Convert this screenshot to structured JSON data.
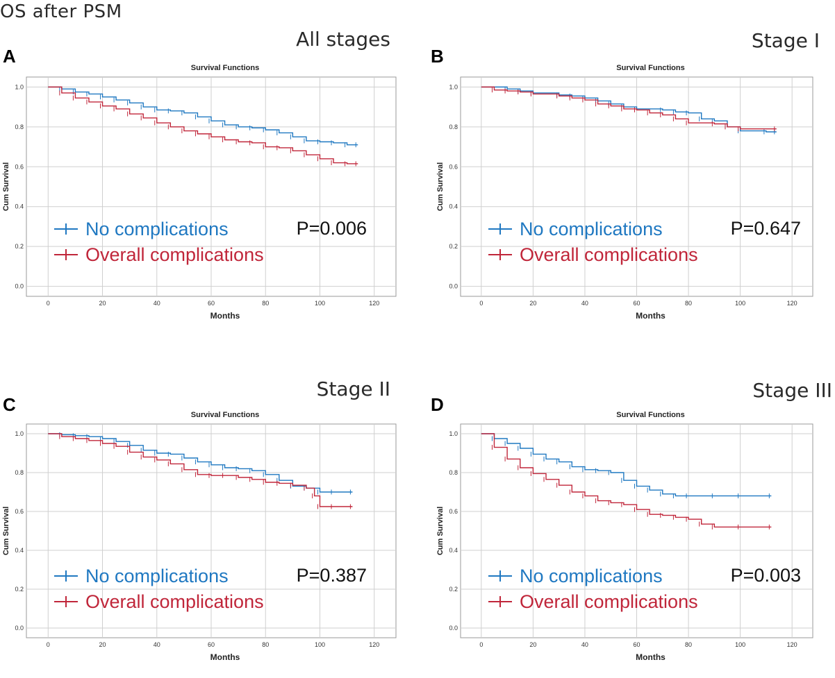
{
  "figure_title": "OS after PSM",
  "colors": {
    "no_complications": "#1f78c1",
    "overall_complications": "#c0263a",
    "grid": "#cfcfcf",
    "axis": "#999999"
  },
  "legend": {
    "no_complications": "No complications",
    "overall_complications": "Overall complications"
  },
  "chart_data": [
    {
      "type": "line",
      "panel": "A",
      "stage": "All stages",
      "title": "Survival Functions",
      "xlabel": "Months",
      "ylabel": "Cum Survival",
      "xlim": [
        -8,
        128
      ],
      "ylim": [
        -0.05,
        1.05
      ],
      "xticks": [
        0,
        20,
        40,
        60,
        80,
        100,
        120
      ],
      "yticks": [
        0.0,
        0.2,
        0.4,
        0.6,
        0.8,
        1.0
      ],
      "xtick_labels": [
        "0",
        "20",
        "40",
        "60",
        "80",
        "100",
        "120"
      ],
      "ytick_labels": [
        "0.0",
        "0.2",
        "0.4",
        "0.6",
        "0.8",
        "1.0"
      ],
      "p_value": "P=0.006",
      "series": [
        {
          "name": "No complications",
          "points": [
            [
              0,
              1.0
            ],
            [
              5,
              0.99
            ],
            [
              10,
              0.975
            ],
            [
              15,
              0.965
            ],
            [
              20,
              0.95
            ],
            [
              25,
              0.935
            ],
            [
              30,
              0.92
            ],
            [
              35,
              0.9
            ],
            [
              40,
              0.885
            ],
            [
              45,
              0.88
            ],
            [
              50,
              0.87
            ],
            [
              55,
              0.85
            ],
            [
              60,
              0.83
            ],
            [
              65,
              0.81
            ],
            [
              70,
              0.8
            ],
            [
              75,
              0.795
            ],
            [
              80,
              0.785
            ],
            [
              85,
              0.77
            ],
            [
              90,
              0.75
            ],
            [
              95,
              0.73
            ],
            [
              100,
              0.725
            ],
            [
              105,
              0.72
            ],
            [
              110,
              0.71
            ],
            [
              114,
              0.71
            ]
          ]
        },
        {
          "name": "Overall complications",
          "points": [
            [
              0,
              1.0
            ],
            [
              5,
              0.97
            ],
            [
              10,
              0.945
            ],
            [
              15,
              0.925
            ],
            [
              20,
              0.905
            ],
            [
              25,
              0.89
            ],
            [
              30,
              0.865
            ],
            [
              35,
              0.845
            ],
            [
              40,
              0.82
            ],
            [
              45,
              0.8
            ],
            [
              50,
              0.78
            ],
            [
              55,
              0.765
            ],
            [
              60,
              0.75
            ],
            [
              65,
              0.735
            ],
            [
              70,
              0.725
            ],
            [
              75,
              0.72
            ],
            [
              80,
              0.7
            ],
            [
              85,
              0.695
            ],
            [
              90,
              0.68
            ],
            [
              95,
              0.66
            ],
            [
              100,
              0.64
            ],
            [
              105,
              0.62
            ],
            [
              110,
              0.615
            ],
            [
              114,
              0.615
            ]
          ]
        }
      ]
    },
    {
      "type": "line",
      "panel": "B",
      "stage": "Stage I",
      "title": "Survival Functions",
      "xlabel": "Months",
      "ylabel": "Cum Survival",
      "xlim": [
        -8,
        128
      ],
      "ylim": [
        -0.05,
        1.05
      ],
      "xticks": [
        0,
        20,
        40,
        60,
        80,
        100,
        120
      ],
      "yticks": [
        0.0,
        0.2,
        0.4,
        0.6,
        0.8,
        1.0
      ],
      "xtick_labels": [
        "0",
        "20",
        "40",
        "60",
        "80",
        "100",
        "120"
      ],
      "ytick_labels": [
        "0.0",
        "0.2",
        "0.4",
        "0.6",
        "0.8",
        "1.0"
      ],
      "p_value": "P=0.647",
      "series": [
        {
          "name": "No complications",
          "points": [
            [
              0,
              1.0
            ],
            [
              10,
              0.99
            ],
            [
              15,
              0.98
            ],
            [
              20,
              0.97
            ],
            [
              30,
              0.96
            ],
            [
              35,
              0.955
            ],
            [
              40,
              0.945
            ],
            [
              45,
              0.93
            ],
            [
              50,
              0.915
            ],
            [
              55,
              0.9
            ],
            [
              60,
              0.89
            ],
            [
              70,
              0.885
            ],
            [
              75,
              0.875
            ],
            [
              80,
              0.87
            ],
            [
              85,
              0.84
            ],
            [
              90,
              0.83
            ],
            [
              95,
              0.8
            ],
            [
              100,
              0.78
            ],
            [
              110,
              0.775
            ],
            [
              114,
              0.775
            ]
          ]
        },
        {
          "name": "Overall complications",
          "points": [
            [
              0,
              1.0
            ],
            [
              5,
              0.985
            ],
            [
              10,
              0.98
            ],
            [
              15,
              0.975
            ],
            [
              20,
              0.965
            ],
            [
              30,
              0.955
            ],
            [
              35,
              0.945
            ],
            [
              40,
              0.935
            ],
            [
              45,
              0.915
            ],
            [
              50,
              0.905
            ],
            [
              55,
              0.89
            ],
            [
              60,
              0.885
            ],
            [
              65,
              0.87
            ],
            [
              70,
              0.86
            ],
            [
              75,
              0.84
            ],
            [
              80,
              0.82
            ],
            [
              90,
              0.815
            ],
            [
              95,
              0.8
            ],
            [
              100,
              0.79
            ],
            [
              114,
              0.79
            ]
          ]
        }
      ]
    },
    {
      "type": "line",
      "panel": "C",
      "stage": "Stage II",
      "title": "Survival Functions",
      "xlabel": "Months",
      "ylabel": "Cum Survival",
      "xlim": [
        -8,
        128
      ],
      "ylim": [
        -0.05,
        1.05
      ],
      "xticks": [
        0,
        20,
        40,
        60,
        80,
        100,
        120
      ],
      "yticks": [
        0.0,
        0.2,
        0.4,
        0.6,
        0.8,
        1.0
      ],
      "xtick_labels": [
        "0",
        "20",
        "40",
        "60",
        "80",
        "100",
        "120"
      ],
      "ytick_labels": [
        "0.0",
        "0.2",
        "0.4",
        "0.6",
        "0.8",
        "1.0"
      ],
      "p_value": "P=0.387",
      "series": [
        {
          "name": "No complications",
          "points": [
            [
              0,
              1.0
            ],
            [
              5,
              0.995
            ],
            [
              10,
              0.99
            ],
            [
              15,
              0.985
            ],
            [
              20,
              0.975
            ],
            [
              25,
              0.96
            ],
            [
              30,
              0.94
            ],
            [
              35,
              0.915
            ],
            [
              40,
              0.9
            ],
            [
              45,
              0.895
            ],
            [
              50,
              0.875
            ],
            [
              55,
              0.855
            ],
            [
              60,
              0.84
            ],
            [
              65,
              0.825
            ],
            [
              70,
              0.82
            ],
            [
              75,
              0.81
            ],
            [
              80,
              0.79
            ],
            [
              85,
              0.76
            ],
            [
              90,
              0.73
            ],
            [
              95,
              0.72
            ],
            [
              100,
              0.7
            ],
            [
              105,
              0.7
            ],
            [
              112,
              0.7
            ]
          ]
        },
        {
          "name": "Overall complications",
          "points": [
            [
              0,
              1.0
            ],
            [
              5,
              0.985
            ],
            [
              10,
              0.975
            ],
            [
              15,
              0.965
            ],
            [
              20,
              0.95
            ],
            [
              25,
              0.935
            ],
            [
              30,
              0.905
            ],
            [
              35,
              0.88
            ],
            [
              40,
              0.865
            ],
            [
              45,
              0.845
            ],
            [
              50,
              0.815
            ],
            [
              55,
              0.79
            ],
            [
              60,
              0.785
            ],
            [
              65,
              0.785
            ],
            [
              70,
              0.775
            ],
            [
              75,
              0.765
            ],
            [
              80,
              0.75
            ],
            [
              85,
              0.745
            ],
            [
              90,
              0.735
            ],
            [
              95,
              0.72
            ],
            [
              98,
              0.68
            ],
            [
              100,
              0.625
            ],
            [
              105,
              0.625
            ],
            [
              112,
              0.625
            ]
          ]
        }
      ]
    },
    {
      "type": "line",
      "panel": "D",
      "stage": "Stage III",
      "title": "Survival Functions",
      "xlabel": "Months",
      "ylabel": "Cum Survival",
      "xlim": [
        -8,
        128
      ],
      "ylim": [
        -0.05,
        1.05
      ],
      "xticks": [
        0,
        20,
        40,
        60,
        80,
        100,
        120
      ],
      "yticks": [
        0.0,
        0.2,
        0.4,
        0.6,
        0.8,
        1.0
      ],
      "xtick_labels": [
        "0",
        "20",
        "40",
        "60",
        "80",
        "100",
        "120"
      ],
      "ytick_labels": [
        "0.0",
        "0.2",
        "0.4",
        "0.6",
        "0.8",
        "1.0"
      ],
      "p_value": "P=0.003",
      "series": [
        {
          "name": "No complications",
          "points": [
            [
              0,
              1.0
            ],
            [
              5,
              0.975
            ],
            [
              10,
              0.95
            ],
            [
              15,
              0.925
            ],
            [
              20,
              0.895
            ],
            [
              25,
              0.87
            ],
            [
              30,
              0.855
            ],
            [
              35,
              0.83
            ],
            [
              40,
              0.815
            ],
            [
              45,
              0.81
            ],
            [
              50,
              0.8
            ],
            [
              55,
              0.76
            ],
            [
              60,
              0.73
            ],
            [
              65,
              0.71
            ],
            [
              70,
              0.69
            ],
            [
              75,
              0.68
            ],
            [
              80,
              0.68
            ],
            [
              90,
              0.68
            ],
            [
              100,
              0.68
            ],
            [
              112,
              0.68
            ]
          ]
        },
        {
          "name": "Overall complications",
          "points": [
            [
              0,
              1.0
            ],
            [
              5,
              0.93
            ],
            [
              10,
              0.87
            ],
            [
              15,
              0.825
            ],
            [
              20,
              0.795
            ],
            [
              25,
              0.765
            ],
            [
              30,
              0.735
            ],
            [
              35,
              0.7
            ],
            [
              40,
              0.68
            ],
            [
              45,
              0.655
            ],
            [
              50,
              0.645
            ],
            [
              55,
              0.635
            ],
            [
              60,
              0.61
            ],
            [
              65,
              0.585
            ],
            [
              70,
              0.58
            ],
            [
              75,
              0.57
            ],
            [
              80,
              0.56
            ],
            [
              85,
              0.535
            ],
            [
              90,
              0.52
            ],
            [
              100,
              0.52
            ],
            [
              112,
              0.52
            ]
          ]
        }
      ]
    }
  ]
}
